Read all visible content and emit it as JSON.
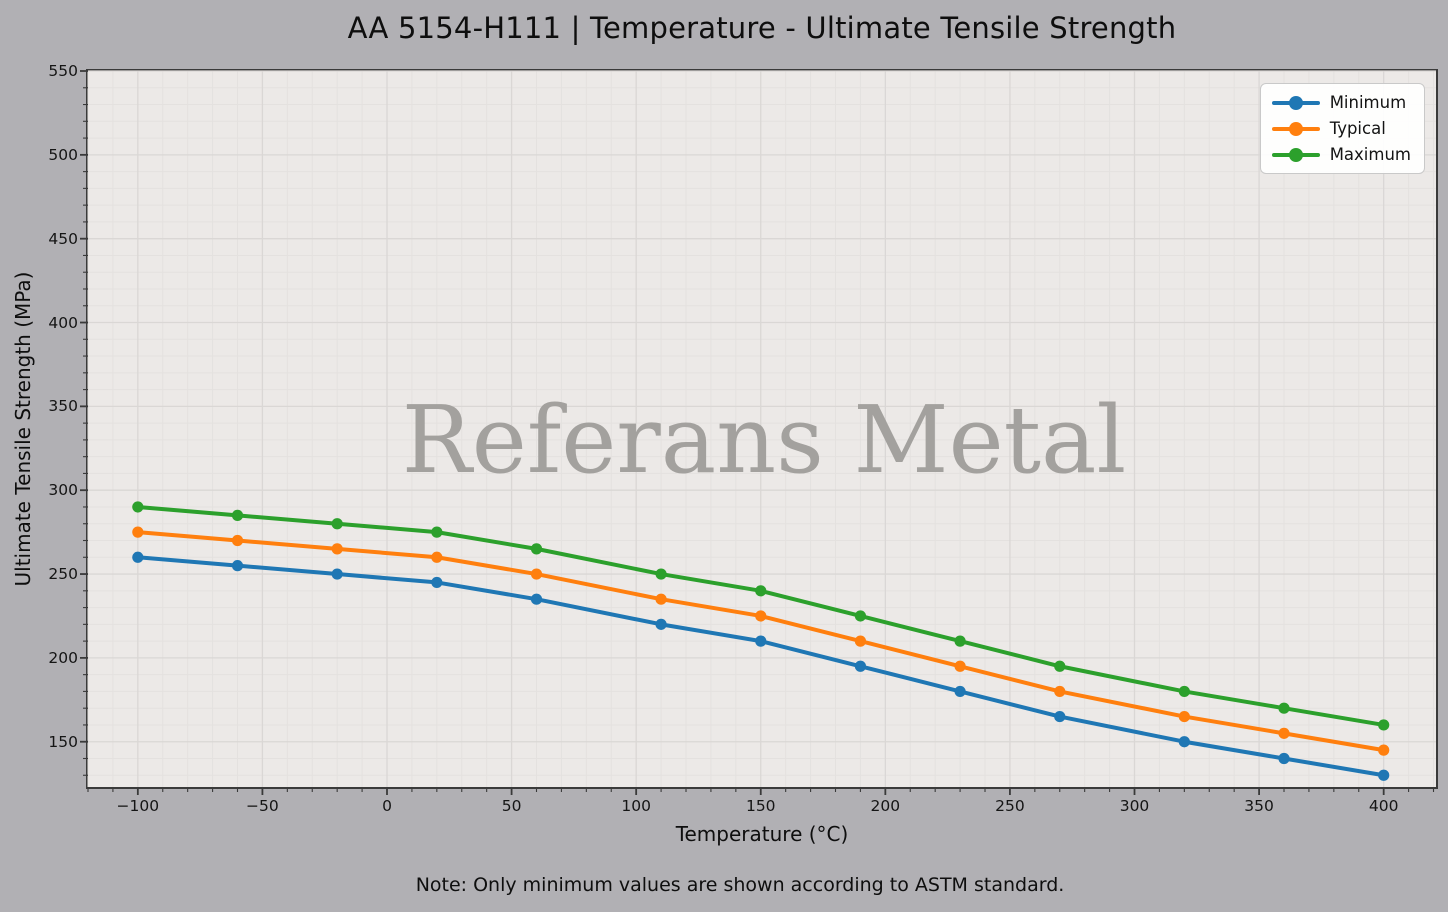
{
  "title": "AA 5154-H111 | Temperature - Ultimate Tensile Strength",
  "watermark": "Referans Metal",
  "note": "Note: Only minimum values are shown according to ASTM standard.",
  "colors": {
    "minimum_line": "#1f77b4",
    "typical_line": "#ff7f0e",
    "maximum_line": "#2ca02c",
    "watermark": "#a3a19e",
    "spine": "#3a3a3a",
    "grid_major": "#dad7d5",
    "grid_minor": "#e4e1df"
  },
  "legend": {
    "position": "upper right",
    "items": [
      "Minimum",
      "Typical",
      "Maximum"
    ]
  },
  "chart_data": {
    "type": "line",
    "title": "AA 5154-H111 | Temperature - Ultimate Tensile Strength",
    "xlabel": "Temperature (°C)",
    "ylabel": "Ultimate Tensile Strength (MPa)",
    "x": [
      -100,
      -60,
      -20,
      20,
      60,
      110,
      150,
      190,
      230,
      270,
      320,
      360,
      400
    ],
    "series": [
      {
        "name": "Minimum",
        "color": "#1f77b4",
        "values": [
          260,
          255,
          250,
          245,
          235,
          220,
          210,
          195,
          180,
          165,
          150,
          140,
          130
        ]
      },
      {
        "name": "Typical",
        "color": "#ff7f0e",
        "values": [
          275,
          270,
          265,
          260,
          250,
          235,
          225,
          210,
          195,
          180,
          165,
          155,
          145
        ]
      },
      {
        "name": "Maximum",
        "color": "#2ca02c",
        "values": [
          290,
          285,
          280,
          275,
          265,
          250,
          240,
          225,
          210,
          195,
          180,
          170,
          160
        ]
      }
    ],
    "xlim": [
      -120,
      421
    ],
    "ylim": [
      123,
      550
    ],
    "x_ticks": [
      -100,
      -50,
      0,
      50,
      100,
      150,
      200,
      250,
      300,
      350,
      400
    ],
    "y_ticks": [
      150,
      200,
      250,
      300,
      350,
      400,
      450,
      500,
      550
    ],
    "minor_tick_step_x": 10,
    "minor_tick_step_y": 10,
    "grid": true,
    "legend_position": "upper right"
  }
}
